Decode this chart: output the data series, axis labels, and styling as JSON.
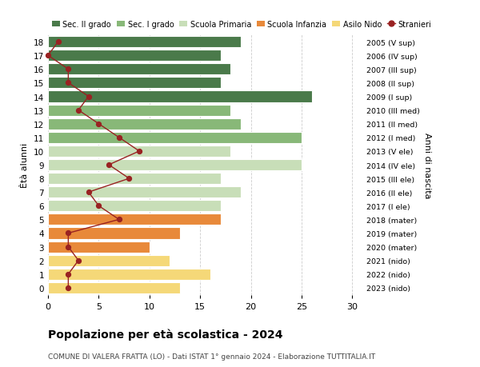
{
  "ages": [
    18,
    17,
    16,
    15,
    14,
    13,
    12,
    11,
    10,
    9,
    8,
    7,
    6,
    5,
    4,
    3,
    2,
    1,
    0
  ],
  "right_labels": [
    "2005 (V sup)",
    "2006 (IV sup)",
    "2007 (III sup)",
    "2008 (II sup)",
    "2009 (I sup)",
    "2010 (III med)",
    "2011 (II med)",
    "2012 (I med)",
    "2013 (V ele)",
    "2014 (IV ele)",
    "2015 (III ele)",
    "2016 (II ele)",
    "2017 (I ele)",
    "2018 (mater)",
    "2019 (mater)",
    "2020 (mater)",
    "2021 (nido)",
    "2022 (nido)",
    "2023 (nido)"
  ],
  "bar_values": [
    19,
    17,
    18,
    17,
    26,
    18,
    19,
    25,
    18,
    25,
    17,
    19,
    17,
    17,
    13,
    10,
    12,
    16,
    13
  ],
  "bar_colors": [
    "#4a7a4a",
    "#4a7a4a",
    "#4a7a4a",
    "#4a7a4a",
    "#4a7a4a",
    "#88b878",
    "#88b878",
    "#88b878",
    "#c8deb8",
    "#c8deb8",
    "#c8deb8",
    "#c8deb8",
    "#c8deb8",
    "#e8893a",
    "#e8893a",
    "#e8893a",
    "#f5d878",
    "#f5d878",
    "#f5d878"
  ],
  "stranieri_values": [
    1,
    0,
    2,
    2,
    4,
    3,
    5,
    7,
    9,
    6,
    8,
    4,
    5,
    7,
    2,
    2,
    3,
    2,
    2
  ],
  "stranieri_color": "#992222",
  "legend_items": [
    {
      "label": "Sec. II grado",
      "color": "#4a7a4a"
    },
    {
      "label": "Sec. I grado",
      "color": "#88b878"
    },
    {
      "label": "Scuola Primaria",
      "color": "#c8deb8"
    },
    {
      "label": "Scuola Infanzia",
      "color": "#e8893a"
    },
    {
      "label": "Asilo Nido",
      "color": "#f5d878"
    },
    {
      "label": "Stranieri",
      "color": "#992222"
    }
  ],
  "ylabel_left": "Ètà alunni",
  "ylabel_right": "Anni di nascita",
  "title": "Popolazione per età scolastica - 2024",
  "subtitle": "COMUNE DI VALERA FRATTA (LO) - Dati ISTAT 1° gennaio 2024 - Elaborazione TUTTITALIA.IT",
  "xlim": [
    0,
    31
  ],
  "xticks": [
    0,
    5,
    10,
    15,
    20,
    25,
    30
  ],
  "background_color": "#ffffff",
  "grid_color": "#cccccc"
}
